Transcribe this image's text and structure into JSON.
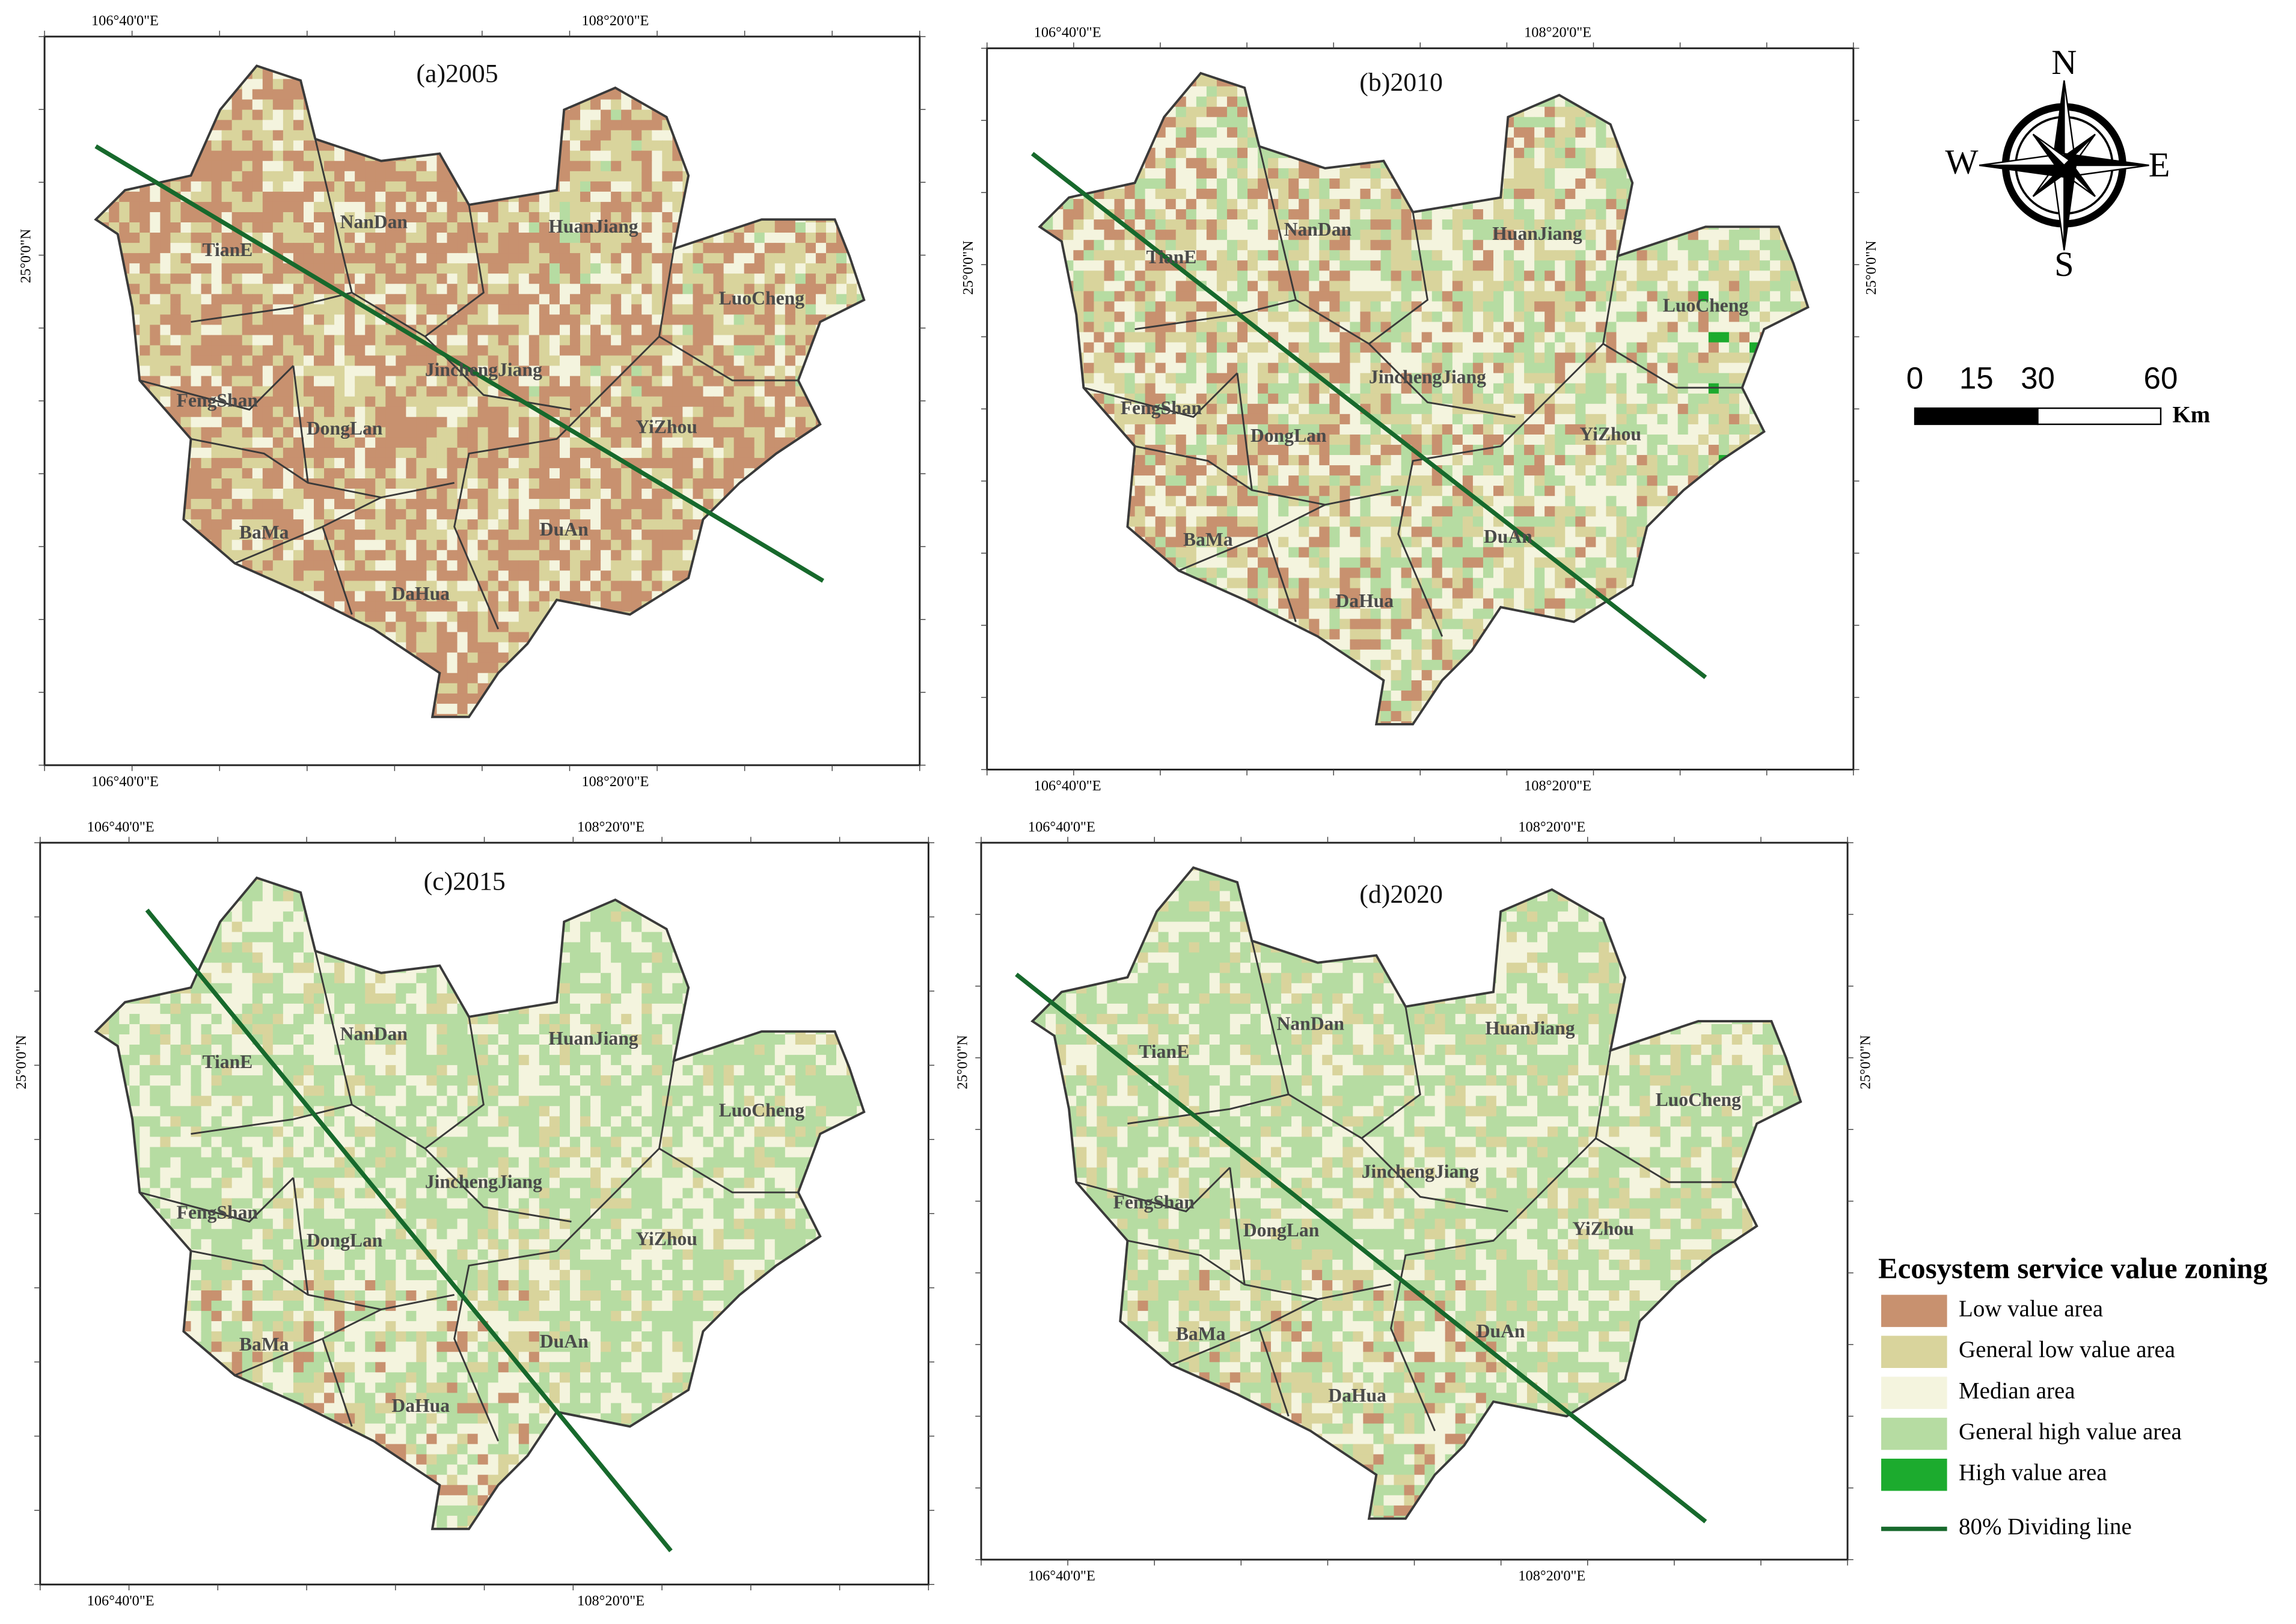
{
  "panels": [
    {
      "title": "(a)2005",
      "top_labels": [
        "106°40'0\"E",
        "108°20'0\"E"
      ],
      "bottom_labels": [
        "106°40'0\"E",
        "108°20'0\"E"
      ],
      "left_label": "25°0'0\"N",
      "counties": [
        "NanDan",
        "HuanJiang",
        "TianE",
        "LuoCheng",
        "JinchengJiang",
        "FengShan",
        "DongLan",
        "YiZhou",
        "BaMa",
        "DuAn",
        "DaHua"
      ]
    },
    {
      "title": "(b)2010",
      "top_labels": [
        "106°40'0\"E",
        "108°20'0\"E"
      ],
      "bottom_labels": [
        "106°40'0\"E",
        "108°20'0\"E"
      ],
      "left_label": "25°0'0\"N",
      "right_label": "25°0'0\"N",
      "counties": [
        "NanDan",
        "HuanJiang",
        "TianE",
        "LuoCheng",
        "JinchengJiang",
        "FengShan",
        "DongLan",
        "YiZhou",
        "BaMa",
        "DuAn",
        "DaHua"
      ]
    },
    {
      "title": "(c)2015",
      "top_labels": [
        "106°40'0\"E",
        "108°20'0\"E"
      ],
      "bottom_labels": [
        "106°40'0\"E",
        "108°20'0\"E"
      ],
      "left_label": "25°0'0\"N",
      "counties": [
        "NanDan",
        "HuanJiang",
        "TianE",
        "LuoCheng",
        "JinchengJiang",
        "FengShan",
        "DongLan",
        "YiZhou",
        "BaMa",
        "DuAn",
        "DaHua"
      ]
    },
    {
      "title": "(d)2020",
      "top_labels": [
        "106°40'0\"E",
        "108°20'0\"E"
      ],
      "bottom_labels": [
        "106°40'0\"E",
        "108°20'0\"E"
      ],
      "left_label": "25°0'0\"N",
      "right_label": "25°0'0\"N",
      "counties": [
        "NanDan",
        "HuanJiang",
        "TianE",
        "LuoCheng",
        "JinchengJiang",
        "FengShan",
        "DongLan",
        "YiZhou",
        "BaMa",
        "DuAn",
        "DaHua"
      ]
    }
  ],
  "compass": {
    "north": "N",
    "west": "W",
    "east": "E",
    "south": "S"
  },
  "scale_bar": {
    "labels": [
      "0",
      "15",
      "30",
      "60"
    ],
    "unit": "Km"
  },
  "legend": {
    "title": "Ecosystem service value zoning",
    "items": [
      {
        "name": "Low value area",
        "color": "#c8916f"
      },
      {
        "name": "General low value area",
        "color": "#d9d49c"
      },
      {
        "name": "Median area",
        "color": "#f4f4de"
      },
      {
        "name": "General high value area",
        "color": "#b6dca2"
      },
      {
        "name": "High value area",
        "color": "#1cab2e"
      },
      {
        "name": "80% Dividing line",
        "color": "#17692c"
      }
    ]
  }
}
